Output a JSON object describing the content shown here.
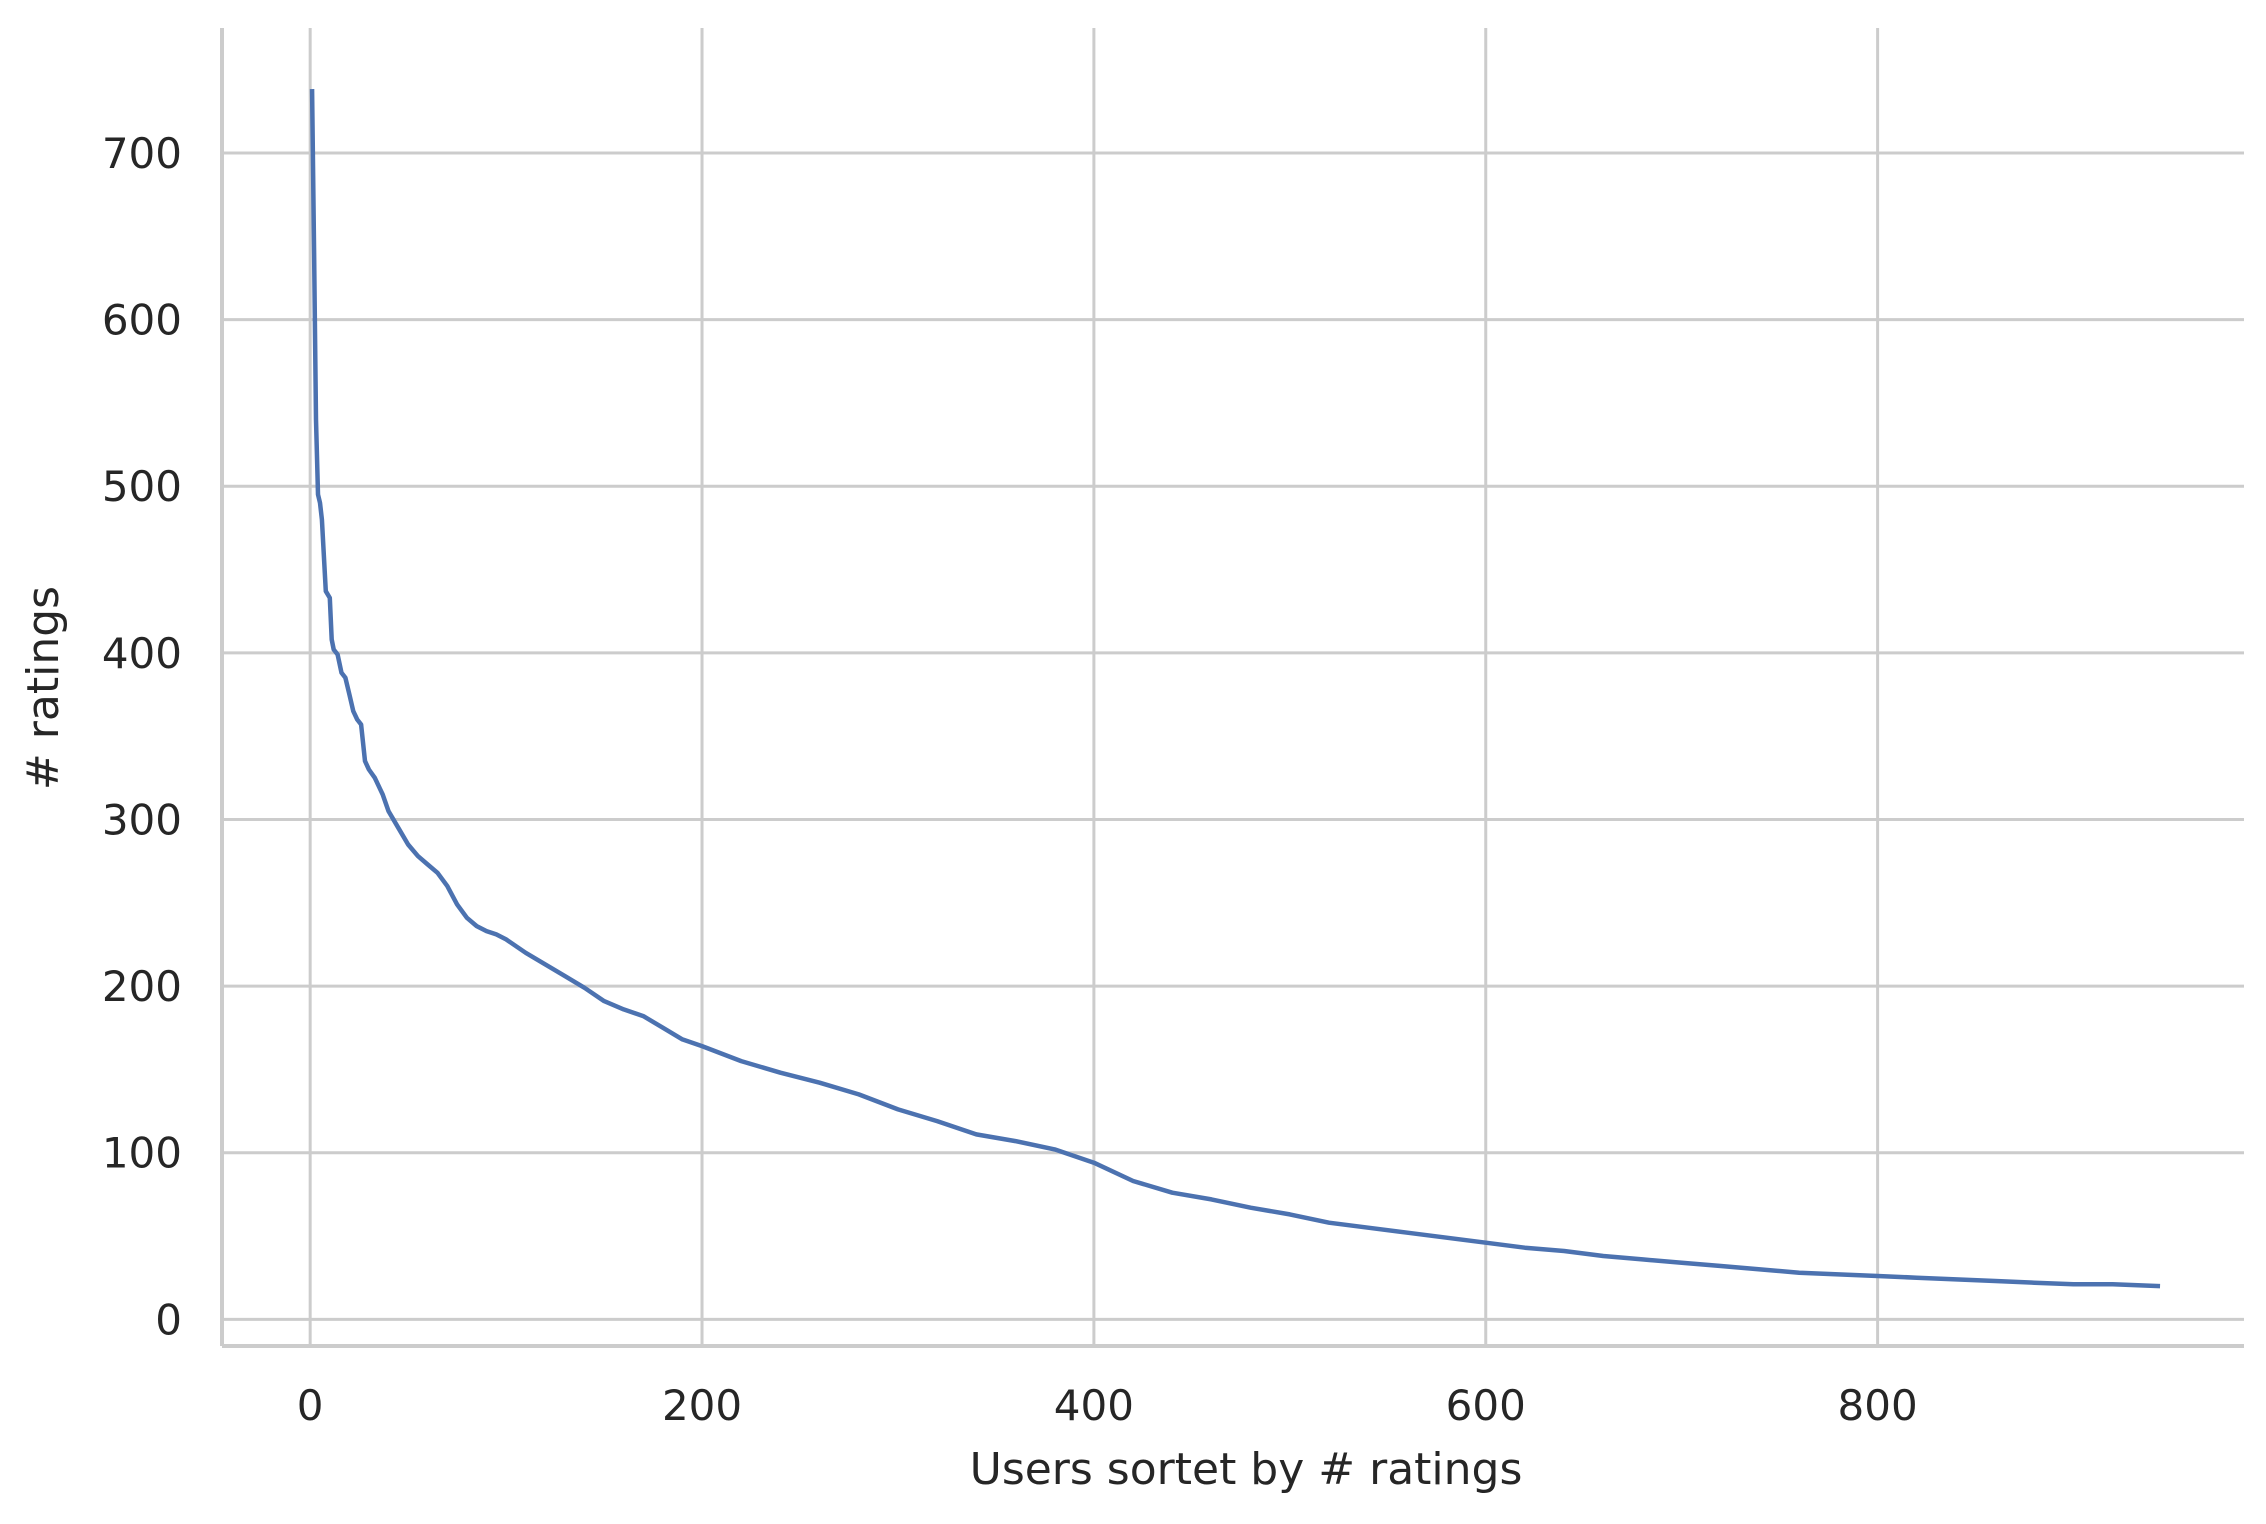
{
  "chart_data": {
    "type": "line",
    "title": "",
    "xlabel": "Users sortet by # ratings",
    "ylabel": "# ratings",
    "xlim": [
      -45,
      987
    ],
    "ylim": [
      -16,
      775
    ],
    "xticks": [
      0,
      200,
      400,
      600,
      800
    ],
    "xtick_labels": [
      "0",
      "200",
      "400",
      "600",
      "800"
    ],
    "yticks": [
      0,
      100,
      200,
      300,
      400,
      500,
      600,
      700
    ],
    "ytick_labels": [
      "0",
      "100",
      "200",
      "300",
      "400",
      "500",
      "600",
      "700"
    ],
    "grid": true,
    "legend": "none",
    "series": [
      {
        "color": "#4c72b0",
        "x": [
          1,
          2,
          3,
          4,
          5,
          6,
          8,
          10,
          11,
          12,
          14,
          16,
          18,
          20,
          22,
          24,
          26,
          28,
          30,
          33,
          35,
          37,
          40,
          45,
          50,
          55,
          60,
          65,
          70,
          75,
          80,
          85,
          90,
          95,
          100,
          110,
          120,
          130,
          140,
          150,
          160,
          170,
          180,
          190,
          200,
          220,
          240,
          260,
          280,
          300,
          320,
          340,
          360,
          380,
          400,
          420,
          440,
          460,
          480,
          500,
          520,
          540,
          560,
          580,
          600,
          620,
          640,
          660,
          680,
          700,
          720,
          740,
          760,
          780,
          800,
          820,
          840,
          860,
          880,
          900,
          920,
          943
        ],
        "y": [
          737,
          640,
          540,
          495,
          490,
          480,
          437,
          433,
          408,
          402,
          399,
          388,
          385,
          375,
          365,
          360,
          357,
          335,
          330,
          325,
          320,
          315,
          305,
          295,
          285,
          278,
          273,
          268,
          260,
          249,
          241,
          236,
          233,
          231,
          228,
          220,
          213,
          206,
          199,
          191,
          186,
          182,
          175,
          168,
          164,
          155,
          148,
          142,
          135,
          126,
          119,
          111,
          107,
          102,
          94,
          83,
          76,
          72,
          67,
          63,
          58,
          55,
          52,
          49,
          46,
          43,
          41,
          38,
          36,
          34,
          32,
          30,
          28,
          27,
          26,
          25,
          24,
          23,
          22,
          21,
          21,
          20
        ]
      }
    ]
  }
}
